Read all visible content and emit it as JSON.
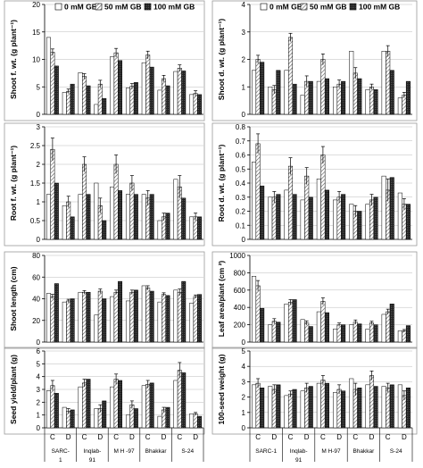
{
  "pattern_colors": {
    "s0": "#ffffff",
    "s50": "#9a9a9a",
    "s100": "#1c1c1c"
  },
  "chart_data": [
    {
      "id": "shoot_fw",
      "type": "bar",
      "ylabel": "Shoot f. wt. (g plant⁻¹)",
      "ylim": [
        0,
        20
      ],
      "yticks": [
        0,
        5,
        10,
        15,
        20
      ],
      "legend": [
        "0 mM GB",
        "50 mM GB",
        "100 mM GB"
      ],
      "series": [
        {
          "name": "0 mM GB",
          "values": [
            14.0,
            4.0,
            7.6,
            1.8,
            10.5,
            4.8,
            9.4,
            4.4,
            7.8,
            3.6
          ]
        },
        {
          "name": "50 mM GB",
          "values": [
            11.3,
            4.2,
            6.9,
            5.5,
            11.2,
            5.1,
            10.8,
            6.5,
            8.4,
            3.8
          ]
        },
        {
          "name": "100 mM GB",
          "values": [
            8.8,
            5.5,
            5.2,
            2.9,
            9.8,
            5.8,
            8.6,
            5.2,
            7.9,
            3.6
          ]
        }
      ],
      "errors": [
        0.6,
        0.4,
        0.5,
        0.7,
        0.8,
        0.5,
        0.7,
        0.6,
        0.6,
        0.5
      ]
    },
    {
      "id": "shoot_dw",
      "type": "bar",
      "ylabel": "Shoot d. wt. (g plant⁻¹)",
      "ylim": [
        0,
        4
      ],
      "yticks": [
        0,
        1,
        2,
        3,
        4
      ],
      "legend": [
        "0 mM GB",
        "50 mM GB",
        "100 mM GB"
      ],
      "series": [
        {
          "name": "0 mM GB",
          "values": [
            1.6,
            1.0,
            1.6,
            0.7,
            1.2,
            1.0,
            2.3,
            0.9,
            2.3,
            0.6
          ]
        },
        {
          "name": "50 mM GB",
          "values": [
            2.0,
            0.9,
            2.8,
            1.2,
            2.0,
            1.1,
            1.5,
            1.0,
            2.3,
            0.7
          ]
        },
        {
          "name": "100 mM GB",
          "values": [
            1.9,
            1.6,
            1.1,
            1.2,
            1.3,
            1.2,
            1.3,
            0.9,
            1.6,
            1.2
          ]
        }
      ],
      "errors": [
        0.15,
        0.15,
        0.15,
        0.2,
        0.2,
        0.15,
        0.2,
        0.1,
        0.2,
        0.1
      ]
    },
    {
      "id": "root_fw",
      "type": "bar",
      "ylabel": "Root f. wt. (g plant⁻¹)",
      "ylim": [
        0,
        3
      ],
      "yticks": [
        0,
        0.5,
        1,
        1.5,
        2,
        2.5,
        3
      ],
      "series": [
        {
          "name": "0 mM GB",
          "values": [
            1.2,
            0.9,
            1.2,
            1.5,
            1.4,
            1.2,
            1.2,
            0.5,
            1.6,
            0.6
          ]
        },
        {
          "name": "50 mM GB",
          "values": [
            2.4,
            1.0,
            2.0,
            0.9,
            2.0,
            1.5,
            1.1,
            0.6,
            1.4,
            0.6
          ]
        },
        {
          "name": "100 mM GB",
          "values": [
            1.5,
            0.6,
            1.2,
            0.5,
            1.3,
            1.2,
            1.2,
            0.7,
            1.1,
            0.6
          ]
        }
      ],
      "errors": [
        0.3,
        0.15,
        0.2,
        0.2,
        0.25,
        0.2,
        0.2,
        0.1,
        0.3,
        0.1
      ]
    },
    {
      "id": "root_dw",
      "type": "bar",
      "ylabel": "Root d. wt. (g plant⁻¹)",
      "ylim": [
        0,
        0.8
      ],
      "yticks": [
        0,
        0.1,
        0.2,
        0.3,
        0.4,
        0.5,
        0.6,
        0.7,
        0.8
      ],
      "series": [
        {
          "name": "0 mM GB",
          "values": [
            0.55,
            0.3,
            0.35,
            0.28,
            0.43,
            0.28,
            0.25,
            0.25,
            0.45,
            0.33
          ]
        },
        {
          "name": "50 mM GB",
          "values": [
            0.68,
            0.3,
            0.52,
            0.45,
            0.6,
            0.3,
            0.2,
            0.28,
            0.35,
            0.25
          ]
        },
        {
          "name": "100 mM GB",
          "values": [
            0.38,
            0.32,
            0.32,
            0.3,
            0.35,
            0.32,
            0.2,
            0.3,
            0.44,
            0.25
          ]
        }
      ],
      "errors": [
        0.07,
        0.04,
        0.06,
        0.06,
        0.06,
        0.04,
        0.04,
        0.04,
        0.08,
        0.04
      ]
    },
    {
      "id": "shoot_len",
      "type": "bar",
      "ylabel": "Shoot length (cm)",
      "ylim": [
        0,
        80
      ],
      "yticks": [
        0,
        20,
        40,
        60,
        80
      ],
      "series": [
        {
          "name": "0 mM GB",
          "values": [
            45,
            37,
            46,
            25,
            42,
            38,
            52,
            37,
            48,
            36
          ]
        },
        {
          "name": "50 mM GB",
          "values": [
            42,
            38,
            46,
            47,
            46,
            46,
            50,
            44,
            46,
            42
          ]
        },
        {
          "name": "100 mM GB",
          "values": [
            54,
            40,
            46,
            40,
            56,
            48,
            47,
            43,
            56,
            44
          ]
        }
      ],
      "errors": [
        2,
        1.5,
        1.5,
        2,
        2,
        2,
        2,
        1.5,
        3,
        1.5
      ]
    },
    {
      "id": "leaf_area",
      "type": "bar",
      "ylabel": "Leaf area/plant (cm ²)",
      "ylim": [
        0,
        1000
      ],
      "yticks": [
        0,
        200,
        400,
        600,
        800,
        1000
      ],
      "series": [
        {
          "name": "0 mM GB",
          "values": [
            760,
            200,
            440,
            260,
            350,
            150,
            200,
            150,
            320,
            130
          ]
        },
        {
          "name": "50 mM GB",
          "values": [
            650,
            240,
            460,
            220,
            470,
            200,
            230,
            220,
            350,
            130
          ]
        },
        {
          "name": "100 mM GB",
          "values": [
            390,
            230,
            490,
            180,
            340,
            200,
            210,
            200,
            440,
            190
          ]
        }
      ],
      "errors": [
        60,
        30,
        30,
        25,
        40,
        20,
        25,
        20,
        30,
        15
      ]
    },
    {
      "id": "seed_yield",
      "type": "bar",
      "ylabel": "Seed yield/plant (g)",
      "ylim": [
        0,
        6
      ],
      "yticks": [
        0,
        1,
        2,
        3,
        4,
        5,
        6
      ],
      "series": [
        {
          "name": "0 mM GB",
          "values": [
            2.9,
            1.6,
            3.2,
            1.5,
            3.2,
            1.0,
            3.3,
            0.9,
            3.7,
            1.1
          ]
        },
        {
          "name": "50 mM GB",
          "values": [
            3.3,
            1.3,
            3.5,
            1.5,
            3.8,
            1.8,
            3.4,
            1.4,
            4.5,
            1.1
          ]
        },
        {
          "name": "100 mM GB",
          "values": [
            2.7,
            1.4,
            3.8,
            2.1,
            3.7,
            1.5,
            3.5,
            1.6,
            4.3,
            0.9
          ]
        }
      ],
      "errors": [
        0.4,
        0.2,
        0.3,
        0.3,
        0.4,
        0.3,
        0.3,
        0.2,
        0.6,
        0.1
      ]
    },
    {
      "id": "seed_weight",
      "type": "bar",
      "ylabel": "100-seed weight (g)",
      "ylim": [
        0,
        5
      ],
      "yticks": [
        0,
        1,
        2,
        3,
        4,
        5
      ],
      "series": [
        {
          "name": "0 mM GB",
          "values": [
            2.8,
            2.7,
            2.1,
            2.4,
            2.9,
            2.3,
            3.2,
            2.8,
            2.7,
            2.8
          ]
        },
        {
          "name": "50 mM GB",
          "values": [
            2.9,
            2.5,
            2.2,
            2.6,
            3.1,
            2.5,
            2.5,
            3.4,
            2.6,
            2.1
          ]
        },
        {
          "name": "100 mM GB",
          "values": [
            2.6,
            2.8,
            2.5,
            2.7,
            2.9,
            2.4,
            2.6,
            2.7,
            2.8,
            2.6
          ]
        }
      ],
      "errors": [
        0.3,
        0.3,
        0.2,
        0.3,
        0.3,
        0.3,
        0.4,
        0.3,
        0.3,
        0.3
      ]
    }
  ],
  "x_axis": {
    "treatments": [
      "C",
      "D",
      "C",
      "D",
      "C",
      "D",
      "C",
      "D",
      "C",
      "D"
    ],
    "left_cultivars": [
      "SARC-\n1",
      "Inqlab-\n91",
      "M H -97",
      "Bhakkar",
      "S-24"
    ],
    "right_cultivars": [
      "SARC-1",
      "Inqlab-\n91",
      "M H-97",
      "Bhakkar",
      "S-24"
    ]
  }
}
